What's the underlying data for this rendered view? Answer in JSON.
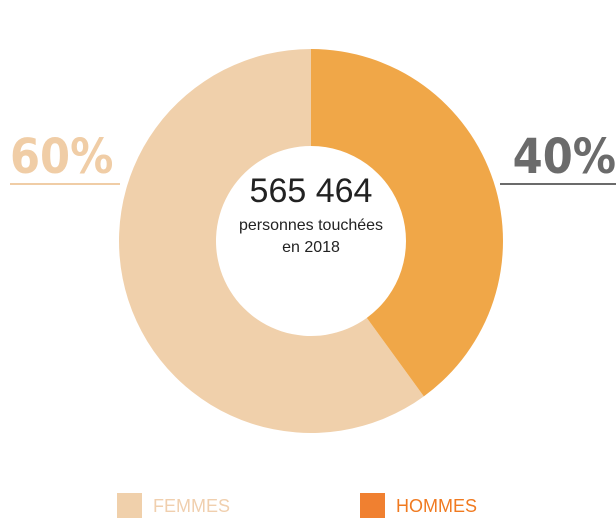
{
  "chart_data": {
    "type": "donut",
    "categories": [
      "FEMMES",
      "HOMMES"
    ],
    "values": [
      60,
      40
    ],
    "value_labels": [
      "60%",
      "40%"
    ],
    "colors": [
      "#f0d0ab",
      "#f0a748"
    ],
    "label_colors": [
      "#f0cda6",
      "#6b6b6b"
    ],
    "center_text": [
      "565 464",
      "personnes touchées",
      "en 2018"
    ]
  }
}
